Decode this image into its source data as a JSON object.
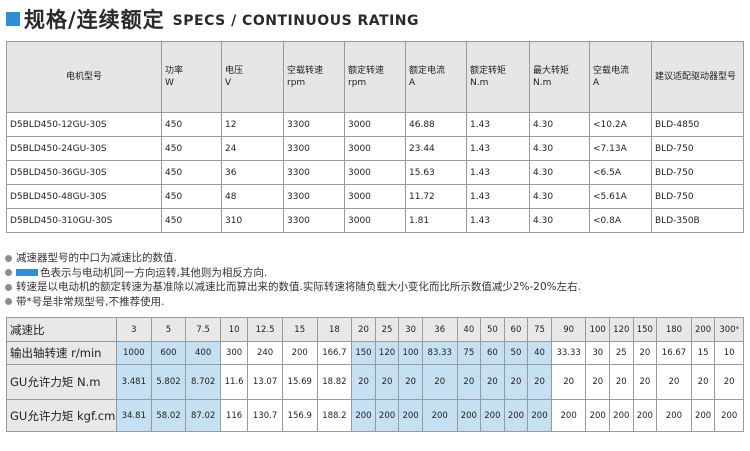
{
  "header": {
    "title_cn": "规格/连续额定",
    "title_en": "SPECS / CONTINUOUS RATING",
    "accent_color": "#2d8fd5"
  },
  "specs": {
    "headers": [
      [
        "电机型号",
        ""
      ],
      [
        "功率",
        "W"
      ],
      [
        "电压",
        "V"
      ],
      [
        "空载转速",
        "rpm"
      ],
      [
        "额定转速",
        "rpm"
      ],
      [
        "额定电流",
        "A"
      ],
      [
        "额定转矩",
        "N.m"
      ],
      [
        "最大转矩",
        "N.m"
      ],
      [
        "空载电流",
        "A"
      ],
      [
        "建议适配驱动器型号",
        ""
      ]
    ],
    "rows": [
      [
        "D5BLD450-12GU-30S",
        "450",
        "12",
        "3300",
        "3000",
        "46.88",
        "1.43",
        "4.30",
        "<10.2A",
        "BLD-4850"
      ],
      [
        "D5BLD450-24GU-30S",
        "450",
        "24",
        "3300",
        "3000",
        "23.44",
        "1.43",
        "4.30",
        "<7.13A",
        "BLD-750"
      ],
      [
        "D5BLD450-36GU-30S",
        "450",
        "36",
        "3300",
        "3000",
        "15.63",
        "1.43",
        "4.30",
        "<6.5A",
        "BLD-750"
      ],
      [
        "D5BLD450-48GU-30S",
        "450",
        "48",
        "3300",
        "3000",
        "11.72",
        "1.43",
        "4.30",
        "<5.61A",
        "BLD-750"
      ],
      [
        "D5BLD450-310GU-30S",
        "450",
        "310",
        "3300",
        "3000",
        "1.81",
        "1.43",
        "4.30",
        "<0.8A",
        "BLD-350B"
      ]
    ]
  },
  "notes": {
    "n1": "减速器型号的中口为减速比的数值.",
    "n2": "色表示与电动机同一方向运转,其他则为相反方向.",
    "n3": "转速是以电动机的额定转速为基准除以减速比而算出来的数值.实际转速将随负载大小变化而比所示数值减少2%-20%左右.",
    "n4": "带*号是非常规型号,不推荐使用."
  },
  "ratio_table": {
    "row_labels": [
      "减速比",
      "输出轴转速 r/min",
      "GU允许力矩 N.m",
      "GU允许力矩 kgf.cm"
    ],
    "ratios": [
      "3",
      "5",
      "7.5",
      "10",
      "12.5",
      "15",
      "18",
      "20",
      "25",
      "30",
      "36",
      "40",
      "50",
      "60",
      "75",
      "90",
      "100",
      "120",
      "150",
      "180",
      "200",
      "300"
    ],
    "last_mark": "*",
    "speed": [
      "1000",
      "600",
      "400",
      "300",
      "240",
      "200",
      "166.7",
      "150",
      "120",
      "100",
      "83.33",
      "75",
      "60",
      "50",
      "40",
      "33.33",
      "30",
      "25",
      "20",
      "16.67",
      "15",
      "10"
    ],
    "torque_nm": [
      "3.481",
      "5.802",
      "8.702",
      "11.6",
      "13.07",
      "15.69",
      "18.82",
      "20",
      "20",
      "20",
      "20",
      "20",
      "20",
      "20",
      "20",
      "20",
      "20",
      "20",
      "20",
      "20",
      "20",
      "20"
    ],
    "torque_kgf": [
      "34.81",
      "58.02",
      "87.02",
      "116",
      "130.7",
      "156.9",
      "188.2",
      "200",
      "200",
      "200",
      "200",
      "200",
      "200",
      "200",
      "200",
      "200",
      "200",
      "200",
      "200",
      "200",
      "200",
      "200"
    ],
    "highlight_color": "#c5dff3"
  }
}
